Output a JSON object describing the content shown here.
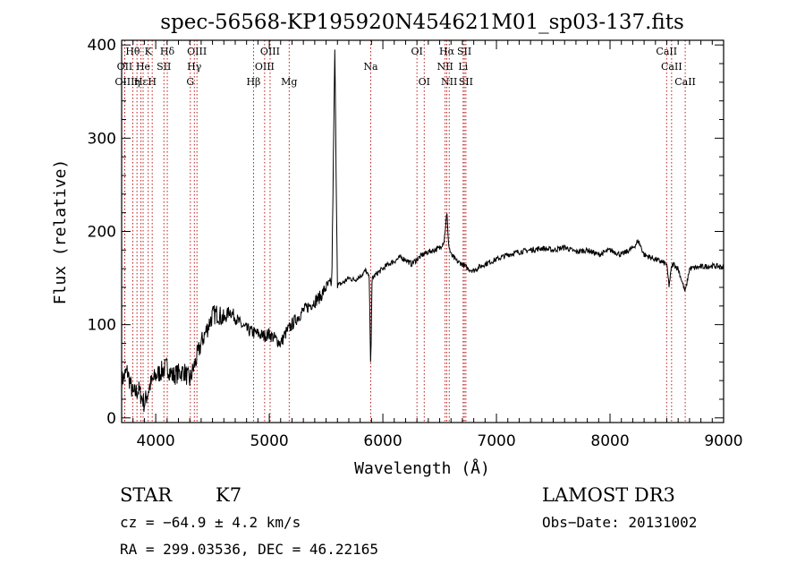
{
  "chart_data": {
    "type": "line",
    "title": "spec-56568-KP195920N454621M01_sp03-137.fits",
    "xlabel": "Wavelength (Å)",
    "ylabel": "Flux (relative)",
    "xlim": [
      3700,
      9000
    ],
    "ylim": [
      -5,
      405
    ],
    "x_ticks": [
      4000,
      5000,
      6000,
      7000,
      8000,
      9000
    ],
    "y_ticks": [
      0,
      100,
      200,
      300,
      400
    ],
    "grid": false,
    "series": [
      {
        "x": [
          3700,
          3750,
          3800,
          3850,
          3900,
          3950,
          4000,
          4050,
          4100,
          4150,
          4200,
          4250,
          4300,
          4350,
          4400,
          4450,
          4500,
          4550,
          4600,
          4650,
          4700,
          4750,
          4800,
          4850,
          4900,
          4950,
          5000,
          5050,
          5100,
          5150,
          5200,
          5250,
          5300,
          5350,
          5400,
          5450,
          5500,
          5550,
          5577,
          5600,
          5650,
          5700,
          5750,
          5800,
          5850,
          5880,
          5893,
          5905,
          5950,
          6000,
          6050,
          6100,
          6150,
          6200,
          6250,
          6300,
          6350,
          6400,
          6450,
          6500,
          6540,
          6563,
          6580,
          6600,
          6650,
          6700,
          6750,
          6800,
          6850,
          6900,
          7000,
          7100,
          7200,
          7300,
          7400,
          7500,
          7600,
          7700,
          7800,
          7900,
          8000,
          8100,
          8200,
          8250,
          8300,
          8400,
          8498,
          8520,
          8542,
          8560,
          8600,
          8662,
          8700,
          8800,
          8900,
          9000
        ],
        "values": [
          40,
          50,
          25,
          30,
          15,
          35,
          45,
          50,
          55,
          45,
          48,
          50,
          40,
          60,
          80,
          95,
          110,
          112,
          105,
          115,
          108,
          100,
          95,
          92,
          90,
          88,
          90,
          85,
          80,
          92,
          100,
          108,
          115,
          120,
          125,
          130,
          140,
          145,
          395,
          142,
          145,
          150,
          148,
          152,
          158,
          150,
          55,
          150,
          155,
          160,
          165,
          168,
          172,
          170,
          165,
          170,
          175,
          178,
          180,
          182,
          190,
          220,
          185,
          175,
          168,
          165,
          160,
          158,
          162,
          165,
          170,
          175,
          178,
          180,
          182,
          180,
          183,
          178,
          180,
          175,
          180,
          175,
          182,
          190,
          175,
          170,
          165,
          142,
          162,
          165,
          160,
          135,
          160,
          162,
          163,
          162
        ]
      }
    ],
    "spectral_lines": [
      {
        "label": "Hθ",
        "x": 3798,
        "row": 0
      },
      {
        "label": "OII",
        "x": 3727,
        "row": 1
      },
      {
        "label": "OIII",
        "x": 3727,
        "row": 2
      },
      {
        "label": "Hε",
        "x": 3870,
        "row": 2
      },
      {
        "label": "He",
        "x": 3889,
        "row": 1
      },
      {
        "label": "K",
        "x": 3934,
        "row": 0
      },
      {
        "label": "η",
        "x": 3835,
        "row": 2
      },
      {
        "label": "H",
        "x": 3969,
        "row": 2
      },
      {
        "label": "SII",
        "x": 4072,
        "row": 1
      },
      {
        "label": "Hδ",
        "x": 4102,
        "row": 0
      },
      {
        "label": "OIII",
        "x": 4363,
        "row": 0
      },
      {
        "label": "Hγ",
        "x": 4340,
        "row": 1
      },
      {
        "label": "G",
        "x": 4305,
        "row": 2
      },
      {
        "label": "Hβ",
        "x": 4861,
        "row": 2
      },
      {
        "label": "OIII",
        "x": 4959,
        "row": 1
      },
      {
        "label": "OIII",
        "x": 5007,
        "row": 0
      },
      {
        "label": "Mg",
        "x": 5175,
        "row": 2
      },
      {
        "label": "Na",
        "x": 5893,
        "row": 1
      },
      {
        "label": "OI",
        "x": 6300,
        "row": 0
      },
      {
        "label": "OI",
        "x": 6364,
        "row": 2
      },
      {
        "label": "Hα",
        "x": 6563,
        "row": 0
      },
      {
        "label": "NII",
        "x": 6548,
        "row": 1
      },
      {
        "label": "NII",
        "x": 6584,
        "row": 2
      },
      {
        "label": "SII",
        "x": 6717,
        "row": 0
      },
      {
        "label": "Li",
        "x": 6707,
        "row": 1
      },
      {
        "label": "SII",
        "x": 6731,
        "row": 2
      },
      {
        "label": "CaII",
        "x": 8498,
        "row": 0
      },
      {
        "label": "CaII",
        "x": 8542,
        "row": 1
      },
      {
        "label": "CaII",
        "x": 8662,
        "row": 2
      }
    ]
  },
  "info": {
    "class": "STAR",
    "subclass": "K7",
    "survey": "LAMOST DR3",
    "cz": "cz = −64.9 ± 4.2 km/s",
    "obs_date": "Obs−Date: 20131002",
    "radec": "RA = 299.03536, DEC =  46.22165"
  }
}
